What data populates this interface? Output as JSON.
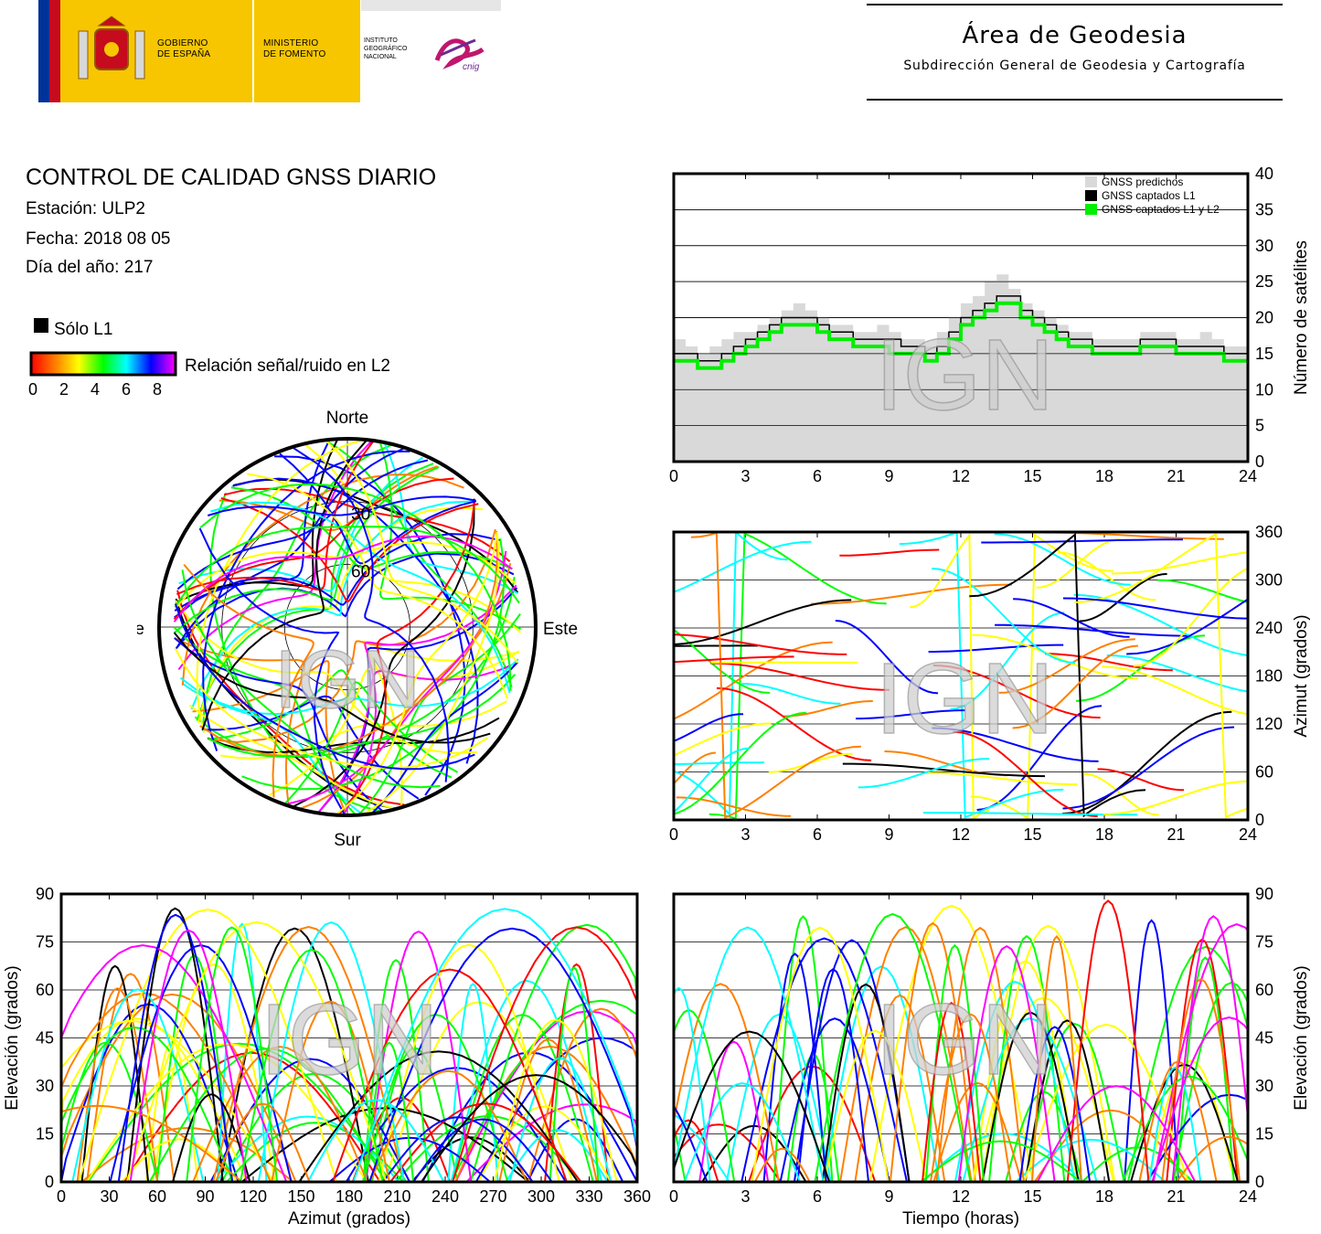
{
  "header": {
    "gov_line1": "GOBIERNO",
    "gov_line2": "DE ESPAÑA",
    "min_line1": "MINISTERIO",
    "min_line2": "DE FOMENTO",
    "inst_line1": "INSTITUTO",
    "inst_line2": "GEOGRÁFICO",
    "inst_line3": "NACIONAL",
    "cnig_logo": "cnig",
    "area_title": "Área de Geodesia",
    "area_subtitle": "Subdirección General de Geodesia y Cartografía"
  },
  "report": {
    "title": "CONTROL DE CALIDAD GNSS DIARIO",
    "station": "Estación: ULP2",
    "date": "Fecha: 2018 08 05",
    "doy": "Día del año: 217"
  },
  "legend": {
    "l1_only": "Sólo L1",
    "snr_label": "Relación señal/ruido en L2",
    "snr_ticks": [
      "0",
      "2",
      "4",
      "6",
      "8"
    ],
    "colors": [
      "#ff0000",
      "#ff8000",
      "#ffff00",
      "#00ff00",
      "#00ffff",
      "#0000ff",
      "#ff00ff"
    ]
  },
  "watermark": "IGN",
  "chart_data": [
    {
      "type": "area",
      "name": "satellite-count",
      "ylabel": "Número de satélites",
      "xlim": [
        0,
        24
      ],
      "ylim": [
        0,
        40
      ],
      "xticks": [
        "0",
        "3",
        "6",
        "9",
        "12",
        "15",
        "18",
        "21",
        "24"
      ],
      "yticks": [
        "0",
        "5",
        "10",
        "15",
        "20",
        "25",
        "30",
        "35",
        "40"
      ],
      "legend_position": "top-right",
      "series": [
        {
          "name": "GNSS predichos",
          "color": "#d9d9d9",
          "x": [
            0,
            0.5,
            1,
            1.5,
            2,
            2.5,
            3,
            3.5,
            4,
            4.5,
            5,
            5.5,
            6,
            6.5,
            7,
            7.5,
            8,
            8.5,
            9,
            9.5,
            10,
            10.5,
            11,
            11.5,
            12,
            12.5,
            13,
            13.5,
            14,
            14.5,
            15,
            15.5,
            16,
            16.5,
            17,
            17.5,
            18,
            18.5,
            19,
            19.5,
            20,
            20.5,
            21,
            21.5,
            22,
            22.5,
            23,
            23.5,
            24
          ],
          "values": [
            17,
            16,
            15,
            16,
            17,
            18,
            18,
            19,
            20,
            21,
            22,
            21,
            20,
            19,
            19,
            18,
            18,
            19,
            18,
            17,
            17,
            16,
            18,
            20,
            22,
            23,
            25,
            26,
            24,
            22,
            21,
            20,
            19,
            18,
            18,
            17,
            17,
            17,
            17,
            18,
            18,
            18,
            17,
            17,
            18,
            17,
            16,
            16,
            16
          ]
        },
        {
          "name": "GNSS captados L1",
          "color": "#000000",
          "x": [
            0,
            0.5,
            1,
            1.5,
            2,
            2.5,
            3,
            3.5,
            4,
            4.5,
            5,
            5.5,
            6,
            6.5,
            7,
            7.5,
            8,
            8.5,
            9,
            9.5,
            10,
            10.5,
            11,
            11.5,
            12,
            12.5,
            13,
            13.5,
            14,
            14.5,
            15,
            15.5,
            16,
            16.5,
            17,
            17.5,
            18,
            18.5,
            19,
            19.5,
            20,
            20.5,
            21,
            21.5,
            22,
            22.5,
            23,
            23.5,
            24
          ],
          "values": [
            15,
            15,
            14,
            14,
            15,
            16,
            17,
            18,
            19,
            20,
            20,
            20,
            19,
            18,
            18,
            17,
            17,
            17,
            17,
            16,
            16,
            15,
            16,
            18,
            20,
            21,
            22,
            23,
            23,
            21,
            20,
            19,
            18,
            17,
            17,
            16,
            16,
            16,
            16,
            17,
            17,
            17,
            16,
            16,
            16,
            16,
            15,
            15,
            15
          ]
        },
        {
          "name": "GNSS captados L1 y L2",
          "color": "#00ee00",
          "x": [
            0,
            0.5,
            1,
            1.5,
            2,
            2.5,
            3,
            3.5,
            4,
            4.5,
            5,
            5.5,
            6,
            6.5,
            7,
            7.5,
            8,
            8.5,
            9,
            9.5,
            10,
            10.5,
            11,
            11.5,
            12,
            12.5,
            13,
            13.5,
            14,
            14.5,
            15,
            15.5,
            16,
            16.5,
            17,
            17.5,
            18,
            18.5,
            19,
            19.5,
            20,
            20.5,
            21,
            21.5,
            22,
            22.5,
            23,
            23.5,
            24
          ],
          "values": [
            14,
            14,
            13,
            13,
            14,
            15,
            16,
            17,
            18,
            19,
            19,
            19,
            18,
            17,
            17,
            16,
            16,
            16,
            15,
            15,
            15,
            14,
            15,
            17,
            19,
            20,
            21,
            22,
            22,
            20,
            19,
            18,
            17,
            16,
            16,
            15,
            15,
            15,
            15,
            16,
            16,
            16,
            15,
            15,
            15,
            15,
            14,
            14,
            14
          ]
        }
      ]
    },
    {
      "type": "scatter",
      "name": "azimuth-vs-time",
      "ylabel": "Azimut (grados)",
      "xlim": [
        0,
        24
      ],
      "ylim": [
        0,
        360
      ],
      "xticks": [
        "0",
        "3",
        "6",
        "9",
        "12",
        "15",
        "18",
        "21",
        "24"
      ],
      "yticks": [
        "0",
        "60",
        "120",
        "180",
        "240",
        "300",
        "360"
      ]
    },
    {
      "type": "scatter",
      "name": "skyplot",
      "labels": {
        "north": "Norte",
        "south": "Sur",
        "east": "Este",
        "west": "Oeste"
      },
      "rings": [
        "30",
        "60"
      ]
    },
    {
      "type": "scatter",
      "name": "elevation-vs-azimuth",
      "xlabel": "Azimut (grados)",
      "ylabel": "Elevación (grados)",
      "xlim": [
        0,
        360
      ],
      "ylim": [
        0,
        90
      ],
      "xticks": [
        "0",
        "30",
        "60",
        "90",
        "120",
        "150",
        "180",
        "210",
        "240",
        "270",
        "300",
        "330",
        "360"
      ],
      "yticks": [
        "0",
        "15",
        "30",
        "45",
        "60",
        "75",
        "90"
      ]
    },
    {
      "type": "scatter",
      "name": "elevation-vs-time",
      "xlabel": "Tiempo (horas)",
      "ylabel": "Elevación (grados)",
      "xlim": [
        0,
        24
      ],
      "ylim": [
        0,
        90
      ],
      "xticks": [
        "0",
        "3",
        "6",
        "9",
        "12",
        "15",
        "18",
        "21",
        "24"
      ],
      "yticks": [
        "0",
        "15",
        "30",
        "45",
        "60",
        "75",
        "90"
      ]
    }
  ]
}
